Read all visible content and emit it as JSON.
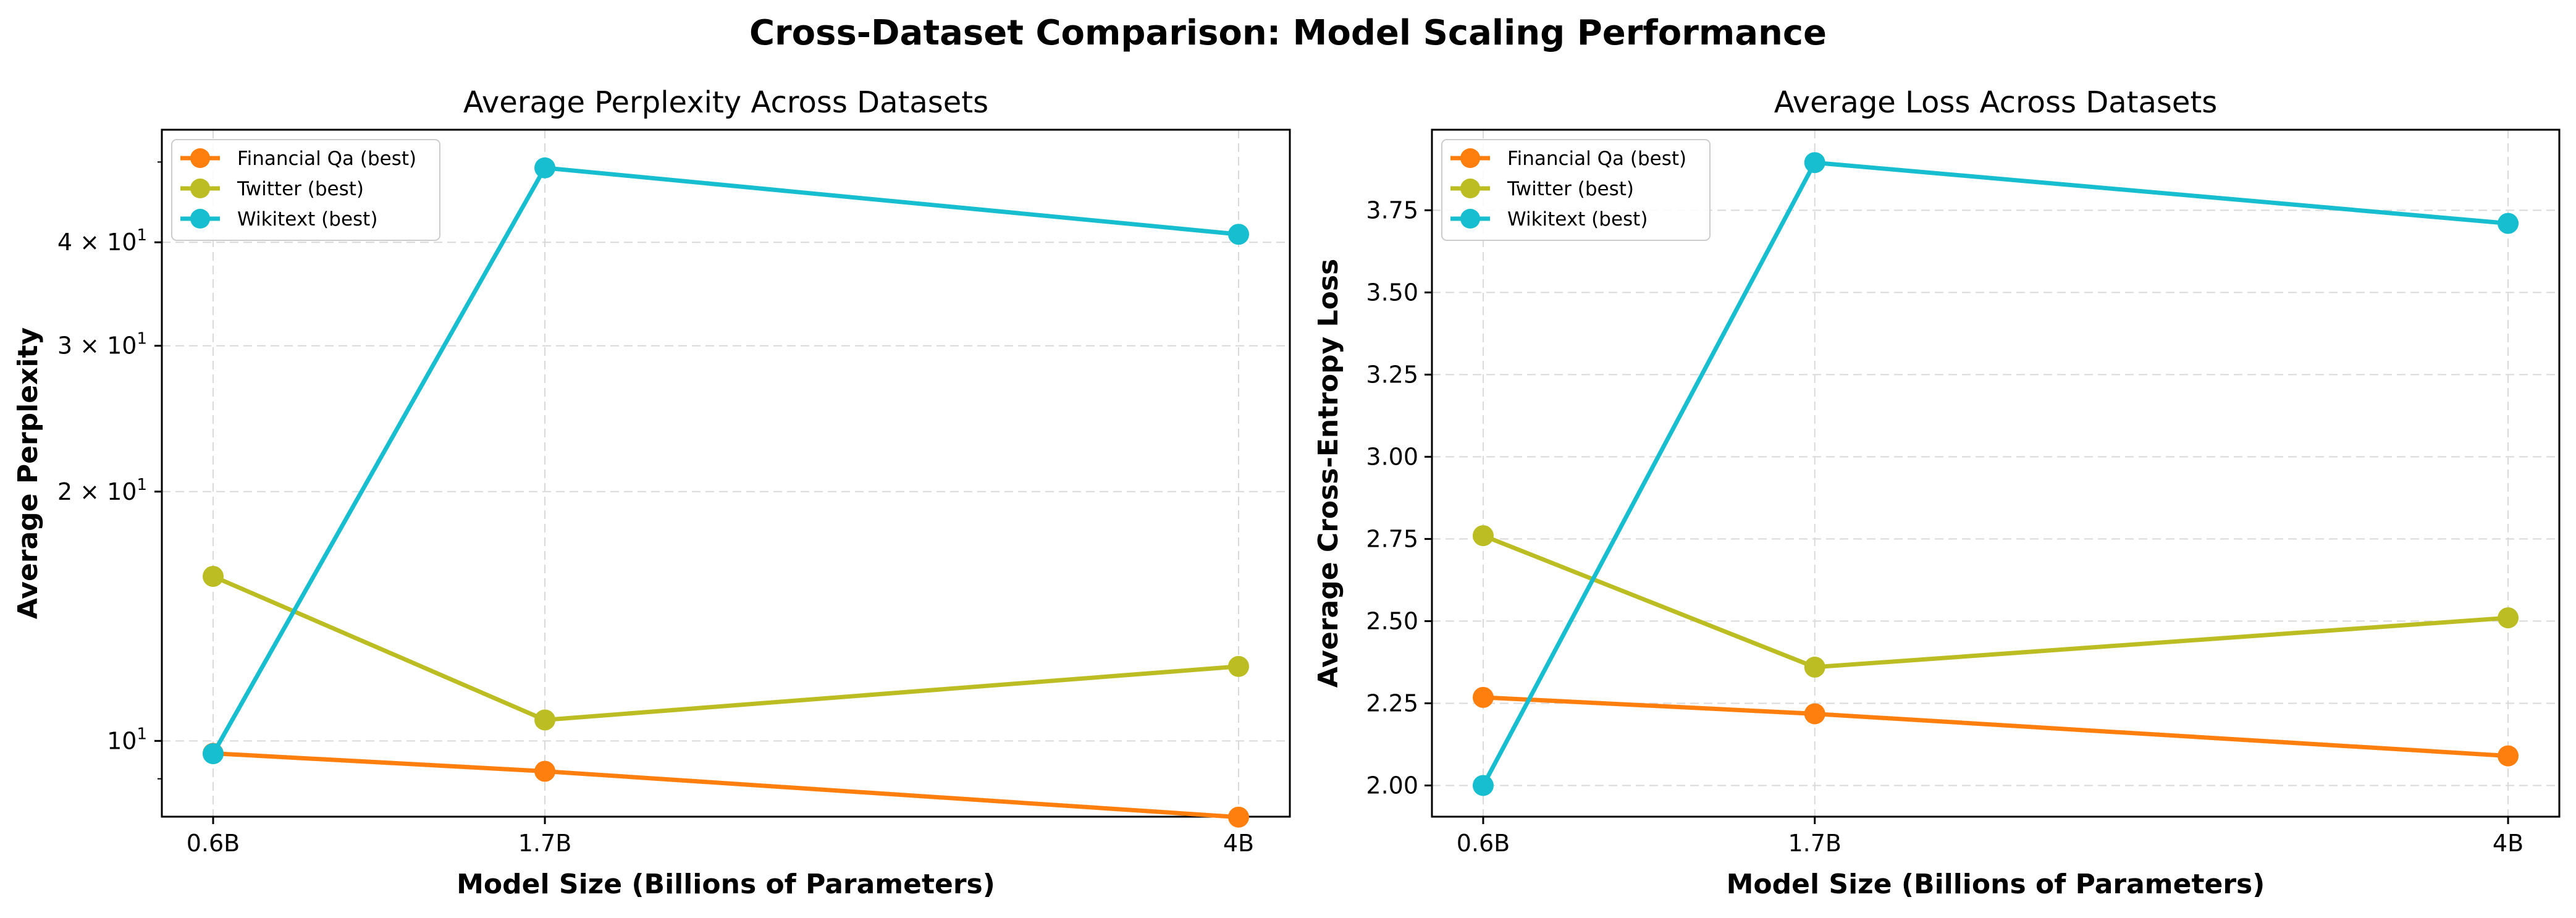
{
  "suptitle": "Cross-Dataset Comparison: Model Scaling Performance",
  "chart_data": [
    {
      "type": "line",
      "title": "Average Perplexity Across Datasets",
      "xlabel": "Model Size (Billions of Parameters)",
      "ylabel": "Average Perplexity",
      "yscale": "log",
      "x_categories": [
        "0.6B",
        "1.7B",
        "4B"
      ],
      "x": [
        0.6,
        1.7,
        4
      ],
      "xlim": [
        0.43,
        4.17
      ],
      "ylim": [
        8.1,
        54.7
      ],
      "yticks": [
        {
          "value": 10,
          "base": "10",
          "exp": "1",
          "mant": ""
        },
        {
          "value": 20,
          "base": "10",
          "exp": "1",
          "mant": "2 × "
        },
        {
          "value": 30,
          "base": "10",
          "exp": "1",
          "mant": "3 × "
        },
        {
          "value": 40,
          "base": "10",
          "exp": "1",
          "mant": "4 × "
        }
      ],
      "minor_yticks": [
        9,
        50
      ],
      "grid": true,
      "legend_position": "upper left",
      "series": [
        {
          "name": "Financial Qa (best)",
          "color": "#ff7f0e",
          "values": [
            9.66,
            9.19,
            8.09
          ]
        },
        {
          "name": "Twitter (best)",
          "color": "#bcbd22",
          "values": [
            15.8,
            10.6,
            12.3
          ]
        },
        {
          "name": "Wikitext (best)",
          "color": "#17becf",
          "values": [
            9.65,
            49.2,
            40.9
          ]
        }
      ]
    },
    {
      "type": "line",
      "title": "Average Loss Across Datasets",
      "xlabel": "Model Size (Billions of Parameters)",
      "ylabel": "Average Cross-Entropy Loss",
      "yscale": "linear",
      "x_categories": [
        "0.6B",
        "1.7B",
        "4B"
      ],
      "x": [
        0.6,
        1.7,
        4
      ],
      "xlim": [
        0.43,
        4.17
      ],
      "ylim": [
        1.905,
        3.995
      ],
      "yticks": [
        "2.00",
        "2.25",
        "2.50",
        "2.75",
        "3.00",
        "3.25",
        "3.50",
        "3.75"
      ],
      "grid": true,
      "legend_position": "upper left",
      "series": [
        {
          "name": "Financial Qa (best)",
          "color": "#ff7f0e",
          "values": [
            2.268,
            2.218,
            2.09
          ]
        },
        {
          "name": "Twitter (best)",
          "color": "#bcbd22",
          "values": [
            2.76,
            2.36,
            2.51
          ]
        },
        {
          "name": "Wikitext (best)",
          "color": "#17becf",
          "values": [
            2.0,
            3.895,
            3.71
          ]
        }
      ]
    }
  ]
}
